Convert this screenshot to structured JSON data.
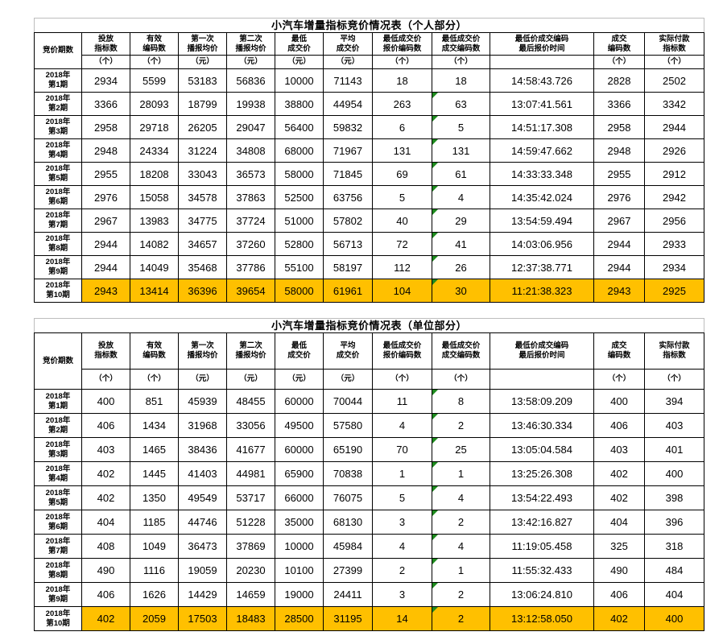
{
  "colors": {
    "highlight": "#FFC000",
    "flag": "#1E8A1E",
    "grid": "#000000",
    "title_box_border": "#BDBDBD"
  },
  "flag_column_index": 7,
  "columns": [
    {
      "label": "竞价期数",
      "unit": ""
    },
    {
      "label": "投放\n指标数",
      "unit": "（个）"
    },
    {
      "label": "有效\n编码数",
      "unit": "（个）"
    },
    {
      "label": "第一次\n播报均价",
      "unit": "（元）"
    },
    {
      "label": "第二次\n播报均价",
      "unit": "（元）"
    },
    {
      "label": "最低\n成交价",
      "unit": "（元）"
    },
    {
      "label": "平均\n成交价",
      "unit": "（元）"
    },
    {
      "label": "最低成交价\n报价编码数",
      "unit": "（个）"
    },
    {
      "label": "最低成交价\n成交编码数",
      "unit": "（个）"
    },
    {
      "label": "最低价成交编码\n最后报价时间",
      "unit": ""
    },
    {
      "label": "成交\n编码数",
      "unit": "（个）"
    },
    {
      "label": "实际付款\n指标数",
      "unit": "（个）"
    }
  ],
  "tables": [
    {
      "title": "小汽车增量指标竞价情况表（个人部分）",
      "rows": [
        {
          "period": "2018年\n第1期",
          "values": [
            "2934",
            "5599",
            "53183",
            "56836",
            "10000",
            "71143",
            "18",
            "18",
            "14:58:43.726",
            "2828",
            "2502"
          ],
          "flag": false,
          "highlight": false
        },
        {
          "period": "2018年\n第2期",
          "values": [
            "3366",
            "28093",
            "18799",
            "19938",
            "38800",
            "44954",
            "263",
            "63",
            "13:07:41.561",
            "3366",
            "3342"
          ],
          "flag": true,
          "highlight": false
        },
        {
          "period": "2018年\n第3期",
          "values": [
            "2958",
            "29718",
            "26205",
            "29047",
            "56400",
            "59832",
            "6",
            "5",
            "14:51:17.308",
            "2958",
            "2944"
          ],
          "flag": true,
          "highlight": false
        },
        {
          "period": "2018年\n第4期",
          "values": [
            "2948",
            "24334",
            "31224",
            "34808",
            "68000",
            "71967",
            "131",
            "131",
            "14:59:47.662",
            "2948",
            "2926"
          ],
          "flag": true,
          "highlight": false
        },
        {
          "period": "2018年\n第5期",
          "values": [
            "2955",
            "18208",
            "33043",
            "36573",
            "58000",
            "71845",
            "69",
            "61",
            "14:33:33.348",
            "2955",
            "2912"
          ],
          "flag": true,
          "highlight": false
        },
        {
          "period": "2018年\n第6期",
          "values": [
            "2976",
            "15058",
            "34578",
            "37863",
            "52500",
            "63756",
            "5",
            "4",
            "14:35:42.024",
            "2976",
            "2942"
          ],
          "flag": true,
          "highlight": false
        },
        {
          "period": "2018年\n第7期",
          "values": [
            "2967",
            "13983",
            "34775",
            "37724",
            "51000",
            "57802",
            "40",
            "29",
            "13:54:59.494",
            "2967",
            "2956"
          ],
          "flag": true,
          "highlight": false
        },
        {
          "period": "2018年\n第8期",
          "values": [
            "2944",
            "14082",
            "34657",
            "37260",
            "52800",
            "56713",
            "72",
            "41",
            "14:03:06.956",
            "2944",
            "2933"
          ],
          "flag": true,
          "highlight": false
        },
        {
          "period": "2018年\n第9期",
          "values": [
            "2944",
            "14049",
            "35468",
            "37786",
            "55100",
            "58197",
            "112",
            "26",
            "12:37:38.771",
            "2944",
            "2934"
          ],
          "flag": true,
          "highlight": false
        },
        {
          "period": "2018年\n第10期",
          "values": [
            "2943",
            "13414",
            "36396",
            "39654",
            "58000",
            "61961",
            "104",
            "30",
            "11:21:38.323",
            "2943",
            "2925"
          ],
          "flag": true,
          "highlight": true
        }
      ]
    },
    {
      "title": "小汽车增量指标竞价情况表（单位部分）",
      "rows": [
        {
          "period": "2018年\n第1期",
          "values": [
            "400",
            "851",
            "45939",
            "48455",
            "60000",
            "70044",
            "11",
            "8",
            "13:58:09.209",
            "400",
            "394"
          ],
          "flag": true,
          "highlight": false
        },
        {
          "period": "2018年\n第2期",
          "values": [
            "406",
            "1434",
            "31968",
            "33056",
            "49500",
            "57580",
            "4",
            "2",
            "13:46:30.334",
            "406",
            "403"
          ],
          "flag": true,
          "highlight": false
        },
        {
          "period": "2018年\n第3期",
          "values": [
            "403",
            "1465",
            "38436",
            "41677",
            "60000",
            "65190",
            "70",
            "25",
            "13:05:04.584",
            "403",
            "401"
          ],
          "flag": true,
          "highlight": false
        },
        {
          "period": "2018年\n第4期",
          "values": [
            "402",
            "1445",
            "41403",
            "44981",
            "65900",
            "70838",
            "1",
            "1",
            "13:25:26.308",
            "402",
            "400"
          ],
          "flag": true,
          "highlight": false
        },
        {
          "period": "2018年\n第5期",
          "values": [
            "402",
            "1350",
            "49549",
            "53717",
            "66000",
            "76075",
            "5",
            "4",
            "13:54:22.493",
            "402",
            "398"
          ],
          "flag": true,
          "highlight": false
        },
        {
          "period": "2018年\n第6期",
          "values": [
            "404",
            "1185",
            "44746",
            "51228",
            "35000",
            "68130",
            "3",
            "2",
            "13:42:16.827",
            "404",
            "396"
          ],
          "flag": true,
          "highlight": false
        },
        {
          "period": "2018年\n第7期",
          "values": [
            "408",
            "1049",
            "36473",
            "37869",
            "10000",
            "45984",
            "4",
            "4",
            "11:19:05.458",
            "325",
            "318"
          ],
          "flag": true,
          "highlight": false
        },
        {
          "period": "2018年\n第8期",
          "values": [
            "490",
            "1116",
            "19059",
            "20230",
            "10100",
            "27399",
            "2",
            "1",
            "11:55:32.433",
            "490",
            "484"
          ],
          "flag": true,
          "highlight": false
        },
        {
          "period": "2018年\n第9期",
          "values": [
            "406",
            "1626",
            "14429",
            "14659",
            "19000",
            "24411",
            "3",
            "2",
            "13:06:24.810",
            "406",
            "404"
          ],
          "flag": true,
          "highlight": false
        },
        {
          "period": "2018年\n第10期",
          "values": [
            "402",
            "2059",
            "17503",
            "18483",
            "28500",
            "31195",
            "14",
            "2",
            "13:12:58.050",
            "402",
            "400"
          ],
          "flag": true,
          "highlight": true
        }
      ]
    }
  ]
}
